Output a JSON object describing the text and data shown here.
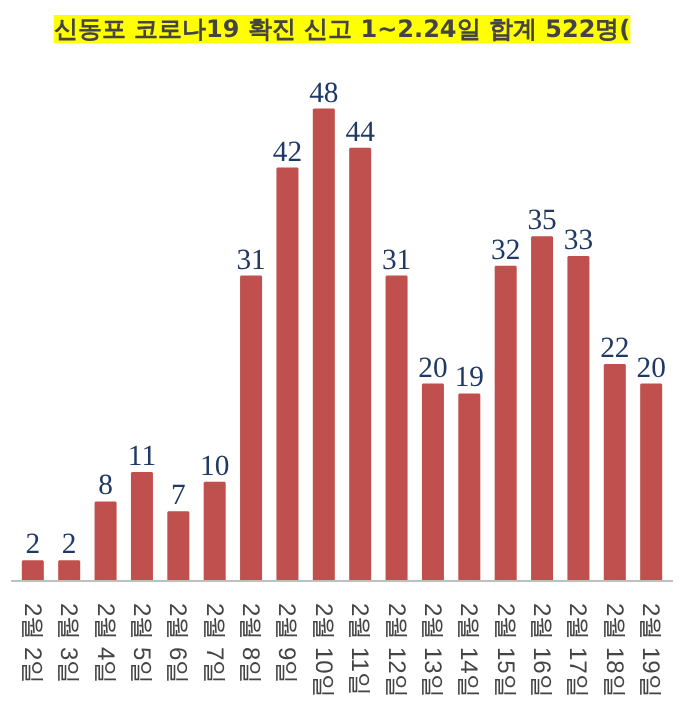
{
  "chart_data": {
    "type": "bar",
    "title": "신동포 코로나19 확진 신고 1~2.24일 합계 522명(",
    "categories": [
      "2월 2일",
      "2월 3일",
      "2월 4일",
      "2월 5일",
      "2월 6일",
      "2월 7일",
      "2월 8일",
      "2월 9일",
      "2월 10일",
      "2월 11일",
      "2월 12일",
      "2월 13일",
      "2월 14일",
      "2월 15일",
      "2월 16일",
      "2월 17일",
      "2월 18일",
      "2월 19일"
    ],
    "values": [
      2,
      2,
      8,
      11,
      7,
      10,
      31,
      42,
      48,
      44,
      31,
      20,
      19,
      32,
      35,
      33,
      22,
      20
    ],
    "color": "#c0504d",
    "data_labels": true
  }
}
